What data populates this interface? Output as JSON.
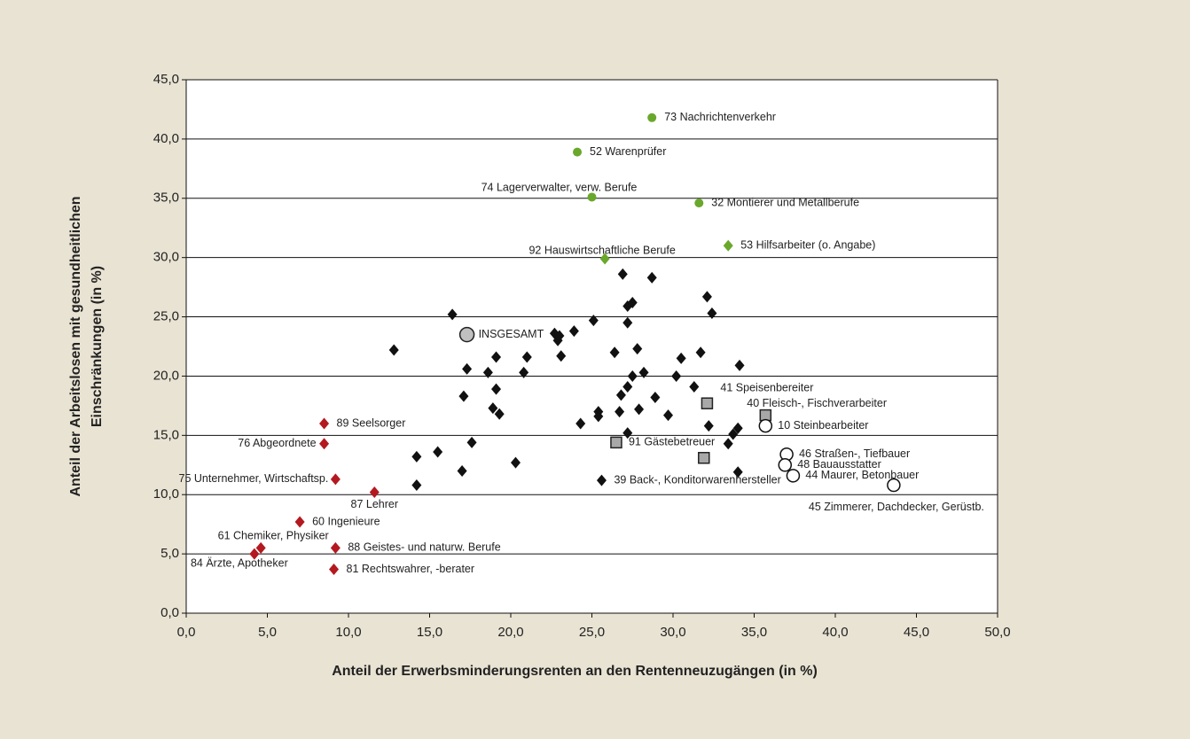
{
  "chart_data": {
    "type": "scatter",
    "x_label": "Anteil der Erwerbsminderungsrenten an den Rentenneuzugängen (in %)",
    "y_label": [
      "Anteil der Arbeitslosen mit gesundheitlichen",
      "Einschränkungen (in %)"
    ],
    "xlim": [
      0,
      50
    ],
    "ylim": [
      0,
      45
    ],
    "xticks": [
      {
        "value": 0,
        "label": "0,0"
      },
      {
        "value": 5,
        "label": "5,0"
      },
      {
        "value": 10,
        "label": "10,0"
      },
      {
        "value": 15,
        "label": "15,0"
      },
      {
        "value": 20,
        "label": "20,0"
      },
      {
        "value": 25,
        "label": "25,0"
      },
      {
        "value": 30,
        "label": "30,0"
      },
      {
        "value": 35,
        "label": "35,0"
      },
      {
        "value": 40,
        "label": "40,0"
      },
      {
        "value": 45,
        "label": "45,0"
      },
      {
        "value": 50,
        "label": "50,0"
      }
    ],
    "yticks": [
      {
        "value": 0,
        "label": "0,0"
      },
      {
        "value": 5,
        "label": "5,0"
      },
      {
        "value": 10,
        "label": "10,0"
      },
      {
        "value": 15,
        "label": "15,0"
      },
      {
        "value": 20,
        "label": "20,0"
      },
      {
        "value": 25,
        "label": "25,0"
      },
      {
        "value": 30,
        "label": "30,0"
      },
      {
        "value": 35,
        "label": "35,0"
      },
      {
        "value": 40,
        "label": "40,0"
      },
      {
        "value": 45,
        "label": "45,0"
      }
    ],
    "grid": true,
    "series": [
      {
        "marker": "circle",
        "color": "#6aa82c",
        "x": [
          28.7,
          24.1,
          25.0,
          31.6
        ],
        "values": [
          41.8,
          38.9,
          35.1,
          34.6
        ],
        "labels": [
          "73 Nachrichtenverkehr",
          "52 Warenprüfer",
          "74 Lagerverwalter, verw. Berufe",
          "32 Montierer und Metallberufe"
        ]
      },
      {
        "marker": "diamond",
        "color": "#6aa82c",
        "x": [
          25.8,
          33.4
        ],
        "values": [
          29.9,
          31.0
        ],
        "labels": [
          "92 Hauswirtschaftliche Berufe",
          "53 Hilfsarbeiter (o. Angabe)"
        ]
      },
      {
        "marker": "diamond",
        "color": "#111111",
        "x": [
          12.8,
          16.4,
          17.3,
          17.1,
          18.6,
          19.1,
          21.0,
          20.8,
          18.9,
          19.1,
          19.3,
          17.6,
          15.5,
          14.2,
          14.2,
          17.0,
          20.3,
          22.7,
          23.0,
          22.9,
          23.1,
          23.9,
          25.1,
          24.3,
          25.4,
          25.4,
          26.4,
          26.9,
          28.7,
          27.2,
          27.5,
          27.2,
          27.8,
          27.5,
          28.2,
          27.2,
          26.8,
          26.7,
          27.9,
          27.2,
          28.9,
          29.7,
          30.2,
          30.5,
          31.3,
          31.7,
          32.1,
          32.4,
          32.2,
          34.1,
          33.7,
          34.0,
          33.4,
          34.0
        ],
        "values": [
          22.2,
          25.2,
          20.6,
          18.3,
          20.3,
          21.6,
          21.6,
          20.3,
          17.3,
          18.9,
          16.8,
          14.4,
          13.6,
          13.2,
          10.8,
          12.0,
          12.7,
          23.6,
          23.4,
          23.0,
          21.7,
          23.8,
          24.7,
          16.0,
          17.0,
          16.6,
          22.0,
          28.6,
          28.3,
          25.9,
          26.2,
          24.5,
          22.3,
          20.0,
          20.3,
          19.1,
          18.4,
          17.0,
          17.2,
          15.2,
          18.2,
          16.7,
          20.0,
          21.5,
          19.1,
          22.0,
          26.7,
          25.3,
          15.8,
          20.9,
          15.1,
          15.6,
          14.3,
          11.9
        ]
      },
      {
        "marker": "diamond",
        "color": "#b3191f",
        "x": [
          8.5,
          8.5,
          9.2,
          11.6,
          7.0,
          4.6,
          4.2,
          9.2,
          9.1
        ],
        "values": [
          16.0,
          14.3,
          11.3,
          10.2,
          7.7,
          5.5,
          5.0,
          5.5,
          3.7
        ],
        "labels": [
          "89 Seelsorger",
          "76 Abgeordnete",
          "75 Unternehmer, Wirtschaftsp.",
          "87 Lehrer",
          "60 Ingenieure",
          "61 Chemiker, Physiker",
          "84 Ärzte, Apotheker",
          "88 Geistes- und naturw. Berufe",
          "81 Rechtswahrer, -berater"
        ]
      },
      {
        "marker": "square",
        "color": "#a8a8a8",
        "x": [
          32.1,
          35.7,
          26.5,
          31.9
        ],
        "values": [
          17.7,
          16.7,
          14.4,
          13.1
        ],
        "labels": [
          "41 Speisenbereiter",
          "40 Fleisch-, Fischverarbeiter",
          "91 Gästebetreuer",
          null
        ]
      },
      {
        "marker": "circle-large",
        "color": "#ffffff",
        "x": [
          35.7,
          37.0,
          36.9,
          37.4,
          43.6
        ],
        "values": [
          15.8,
          13.4,
          12.5,
          11.6,
          10.8
        ],
        "labels": [
          "10 Steinbearbeiter",
          "46 Straßen-, Tiefbauer",
          "48 Bauausstatter",
          "44 Maurer, Betonbauer",
          "45 Zimmerer, Dachdecker, Gerüstb."
        ]
      },
      {
        "marker": "circle-big",
        "color": "#c0c0c0",
        "x": [
          17.3
        ],
        "values": [
          23.5
        ],
        "labels": [
          "INSGESAMT"
        ]
      },
      {
        "marker": "diamond",
        "color": "#111111",
        "x": [
          25.6
        ],
        "values": [
          11.2
        ],
        "labels": [
          "39 Back-, Konditorwarenhersteller"
        ]
      }
    ]
  }
}
